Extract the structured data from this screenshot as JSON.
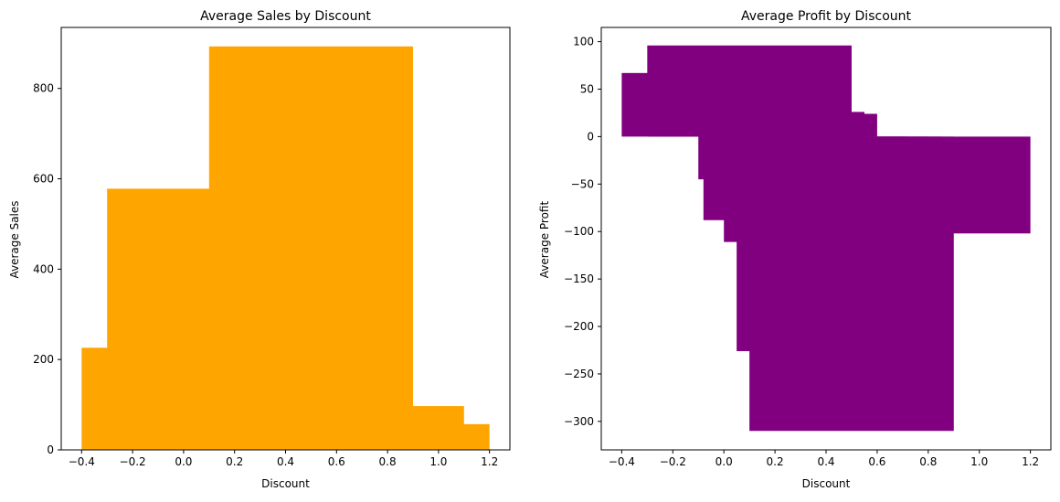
{
  "chart_data": [
    {
      "type": "bar",
      "title": "Average Sales by Discount",
      "xlabel": "Discount",
      "ylabel": "Average Sales",
      "color": "#ffa500",
      "xlim": [
        -0.48,
        1.28
      ],
      "ylim": [
        0,
        935
      ],
      "xticks": [
        -0.4,
        -0.2,
        0.0,
        0.2,
        0.4,
        0.6,
        0.8,
        1.0,
        1.2
      ],
      "xtick_labels": [
        "−0.4",
        "−0.2",
        "0.0",
        "0.2",
        "0.4",
        "0.6",
        "0.8",
        "1.0",
        "1.2"
      ],
      "yticks": [
        0,
        200,
        400,
        600,
        800
      ],
      "ytick_labels": [
        "0",
        "200",
        "400",
        "600",
        "800"
      ],
      "bar_width": 0.8,
      "bars": [
        {
          "x": 0.0,
          "value": 226
        },
        {
          "x": 0.1,
          "value": 578
        },
        {
          "x": 0.5,
          "value": 893
        },
        {
          "x": 0.8,
          "value": 57
        },
        {
          "x": 0.7,
          "value": 97
        }
      ],
      "grid": false
    },
    {
      "type": "bar",
      "title": "Average Profit by Discount",
      "xlabel": "Discount",
      "ylabel": "Average Profit",
      "color": "#800080",
      "xlim": [
        -0.48,
        1.28
      ],
      "ylim": [
        -330,
        115
      ],
      "xticks": [
        -0.4,
        -0.2,
        0.0,
        0.2,
        0.4,
        0.6,
        0.8,
        1.0,
        1.2
      ],
      "xtick_labels": [
        "−0.4",
        "−0.2",
        "0.0",
        "0.2",
        "0.4",
        "0.6",
        "0.8",
        "1.0",
        "1.2"
      ],
      "yticks": [
        100,
        50,
        0,
        -50,
        -100,
        -150,
        -200,
        -250,
        -300
      ],
      "ytick_labels": [
        "100",
        "50",
        "0",
        "−50",
        "−100",
        "−150",
        "−200",
        "−250",
        "−300"
      ],
      "bar_width": 0.8,
      "bars": [
        {
          "x": 0.0,
          "value": 67
        },
        {
          "x": 0.1,
          "value": 96
        },
        {
          "x": 0.15,
          "value": 26
        },
        {
          "x": 0.2,
          "value": 24
        },
        {
          "x": 0.3,
          "value": -45
        },
        {
          "x": 0.32,
          "value": -88
        },
        {
          "x": 0.4,
          "value": -111
        },
        {
          "x": 0.45,
          "value": -226
        },
        {
          "x": 0.5,
          "value": -310
        },
        {
          "x": 0.8,
          "value": -102
        }
      ],
      "grid": false
    }
  ]
}
